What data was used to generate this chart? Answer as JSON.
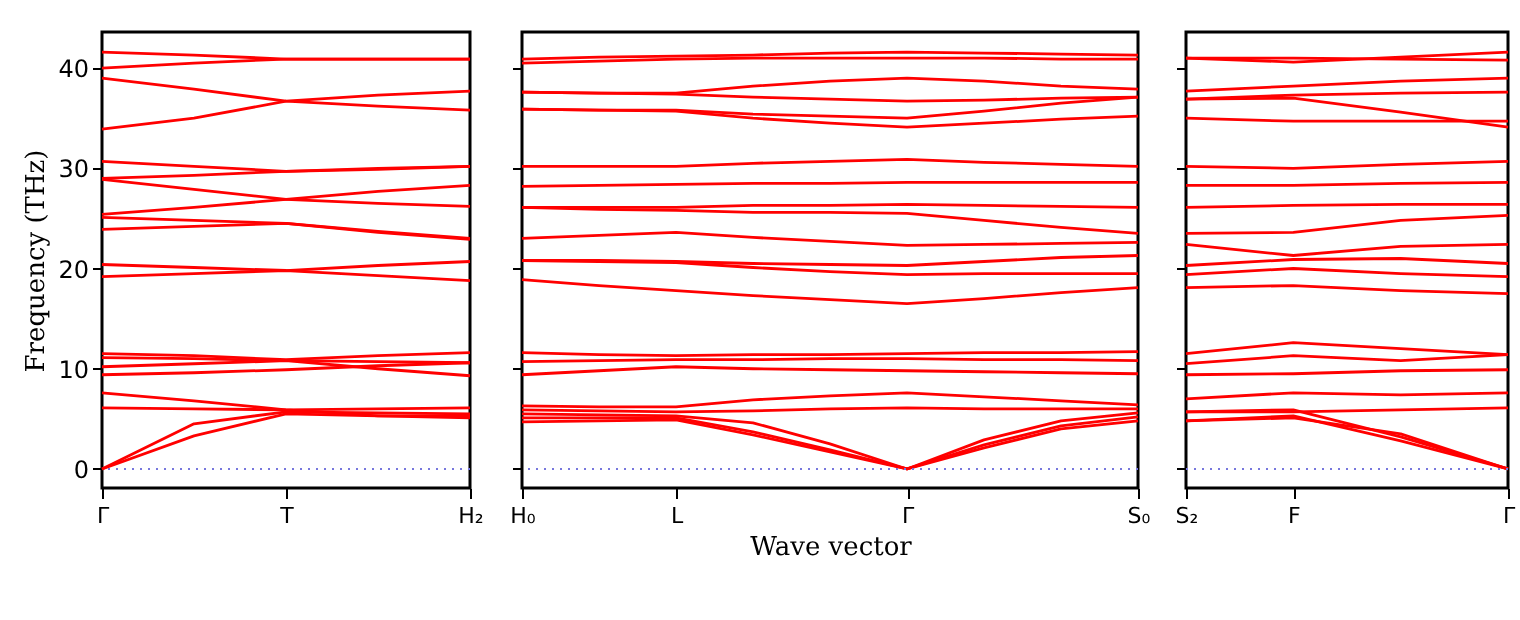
{
  "chart_data": [
    {
      "type": "line",
      "ylabel": "Frequency (THz)",
      "categories": [
        "Γ",
        null,
        "T",
        null,
        "H₂"
      ],
      "ylim": [
        -1.9,
        43.6
      ],
      "yticks": [
        0,
        10,
        20,
        30,
        40
      ],
      "line_style": "solid",
      "ref_lines": [
        {
          "axis": "y",
          "value": 0,
          "color": "#7777dd",
          "line_style": "dotted"
        }
      ],
      "series": [
        {
          "color": "#ff0000",
          "values": [
            41.6,
            41.3,
            40.9,
            40.9,
            40.9
          ]
        },
        {
          "color": "#ff0000",
          "values": [
            40.0,
            40.5,
            40.9,
            40.9,
            40.9
          ]
        },
        {
          "color": "#ff0000",
          "values": [
            39.0,
            37.9,
            36.7,
            36.2,
            35.8
          ]
        },
        {
          "color": "#ff0000",
          "values": [
            33.9,
            35.0,
            36.7,
            37.3,
            37.7
          ]
        },
        {
          "color": "#ff0000",
          "values": [
            30.7,
            30.2,
            29.7,
            29.9,
            30.2
          ]
        },
        {
          "color": "#ff0000",
          "values": [
            29.0,
            29.3,
            29.7,
            30.0,
            30.2
          ]
        },
        {
          "color": "#ff0000",
          "values": [
            28.9,
            27.9,
            26.9,
            26.5,
            26.2
          ]
        },
        {
          "color": "#ff0000",
          "values": [
            25.4,
            26.1,
            26.9,
            27.7,
            28.3
          ]
        },
        {
          "color": "#ff0000",
          "values": [
            25.1,
            24.8,
            24.5,
            23.6,
            22.9
          ]
        },
        {
          "color": "#ff0000",
          "values": [
            23.9,
            24.2,
            24.5,
            23.7,
            23.0
          ]
        },
        {
          "color": "#ff0000",
          "values": [
            20.4,
            20.1,
            19.8,
            20.3,
            20.7
          ]
        },
        {
          "color": "#ff0000",
          "values": [
            19.2,
            19.5,
            19.8,
            19.3,
            18.8
          ]
        },
        {
          "color": "#ff0000",
          "values": [
            11.5,
            11.3,
            10.9,
            11.3,
            11.6
          ]
        },
        {
          "color": "#ff0000",
          "values": [
            11.1,
            11.0,
            10.8,
            10.7,
            10.6
          ]
        },
        {
          "color": "#ff0000",
          "values": [
            10.2,
            10.5,
            10.8,
            10.0,
            9.3
          ]
        },
        {
          "color": "#ff0000",
          "values": [
            9.4,
            9.6,
            9.9,
            10.3,
            10.6
          ]
        },
        {
          "color": "#ff0000",
          "values": [
            7.6,
            6.8,
            5.9,
            5.3,
            5.3
          ]
        },
        {
          "color": "#ff0000",
          "values": [
            6.1,
            6.0,
            5.9,
            6.0,
            6.1
          ]
        },
        {
          "color": "#ff0000",
          "values": [
            0,
            4.5,
            5.7,
            5.6,
            5.5
          ]
        },
        {
          "color": "#ff0000",
          "values": [
            0,
            3.3,
            5.5,
            5.3,
            5.1
          ]
        }
      ]
    },
    {
      "type": "line",
      "xlabel": "Wave vector",
      "categories": [
        "H₀",
        null,
        "L",
        null,
        null,
        "Γ",
        null,
        null,
        "S₀"
      ],
      "ylim": [
        -1.9,
        43.6
      ],
      "yticks": [
        0,
        10,
        20,
        30,
        40
      ],
      "tick_labels": "x",
      "line_style": "solid",
      "ref_lines": [
        {
          "axis": "y",
          "value": 0,
          "color": "#7777dd",
          "line_style": "dotted"
        }
      ],
      "series": [
        {
          "color": "#ff0000",
          "values": [
            40.9,
            41.1,
            41.2,
            41.3,
            41.5,
            41.6,
            41.5,
            41.4,
            41.3
          ]
        },
        {
          "color": "#ff0000",
          "values": [
            40.5,
            40.7,
            40.9,
            41.0,
            41.0,
            41.0,
            41.0,
            40.9,
            40.9
          ]
        },
        {
          "color": "#ff0000",
          "values": [
            37.6,
            37.5,
            37.5,
            38.2,
            38.7,
            39.0,
            38.7,
            38.2,
            37.9
          ]
        },
        {
          "color": "#ff0000",
          "values": [
            37.6,
            37.5,
            37.4,
            37.1,
            36.9,
            36.7,
            36.8,
            37.0,
            37.1
          ]
        },
        {
          "color": "#ff0000",
          "values": [
            35.9,
            35.8,
            35.8,
            35.4,
            35.2,
            35.0,
            35.7,
            36.5,
            37.1
          ]
        },
        {
          "color": "#ff0000",
          "values": [
            35.9,
            35.8,
            35.7,
            35.0,
            34.5,
            34.1,
            34.5,
            34.9,
            35.2
          ]
        },
        {
          "color": "#ff0000",
          "values": [
            30.2,
            30.2,
            30.2,
            30.5,
            30.7,
            30.9,
            30.6,
            30.4,
            30.2
          ]
        },
        {
          "color": "#ff0000",
          "values": [
            28.2,
            28.3,
            28.4,
            28.5,
            28.5,
            28.6,
            28.6,
            28.6,
            28.6
          ]
        },
        {
          "color": "#ff0000",
          "values": [
            26.1,
            26.1,
            26.1,
            26.3,
            26.3,
            26.4,
            26.3,
            26.2,
            26.1
          ]
        },
        {
          "color": "#ff0000",
          "values": [
            26.1,
            25.9,
            25.8,
            25.6,
            25.6,
            25.5,
            24.8,
            24.1,
            23.5
          ]
        },
        {
          "color": "#ff0000",
          "values": [
            23.0,
            23.3,
            23.6,
            23.1,
            22.7,
            22.3,
            22.4,
            22.5,
            22.6
          ]
        },
        {
          "color": "#ff0000",
          "values": [
            20.8,
            20.8,
            20.7,
            20.5,
            20.4,
            20.3,
            20.7,
            21.1,
            21.3
          ]
        },
        {
          "color": "#ff0000",
          "values": [
            20.8,
            20.7,
            20.6,
            20.1,
            19.7,
            19.4,
            19.5,
            19.5,
            19.5
          ]
        },
        {
          "color": "#ff0000",
          "values": [
            18.9,
            18.3,
            17.8,
            17.3,
            16.9,
            16.5,
            17.0,
            17.6,
            18.1
          ]
        },
        {
          "color": "#ff0000",
          "values": [
            11.6,
            11.4,
            11.3,
            11.4,
            11.4,
            11.5,
            11.6,
            11.6,
            11.7
          ]
        },
        {
          "color": "#ff0000",
          "values": [
            10.7,
            10.8,
            10.9,
            10.9,
            11.0,
            11.0,
            10.9,
            10.9,
            10.8
          ]
        },
        {
          "color": "#ff0000",
          "values": [
            9.4,
            9.8,
            10.2,
            10.0,
            9.9,
            9.8,
            9.7,
            9.6,
            9.5
          ]
        },
        {
          "color": "#ff0000",
          "values": [
            6.3,
            6.2,
            6.2,
            6.9,
            7.3,
            7.6,
            7.2,
            6.8,
            6.4
          ]
        },
        {
          "color": "#ff0000",
          "values": [
            5.9,
            5.8,
            5.7,
            5.8,
            6.0,
            6.1,
            6.0,
            6.0,
            6.0
          ]
        },
        {
          "color": "#ff0000",
          "values": [
            5.5,
            5.4,
            5.3,
            4.6,
            2.5,
            0,
            2.9,
            4.8,
            5.6
          ]
        },
        {
          "color": "#ff0000",
          "values": [
            5.1,
            5.1,
            5.1,
            3.7,
            1.9,
            0,
            2.4,
            4.3,
            5.2
          ]
        },
        {
          "color": "#ff0000",
          "values": [
            4.7,
            4.8,
            4.9,
            3.4,
            1.7,
            0,
            2.1,
            4.0,
            4.8
          ]
        }
      ]
    },
    {
      "type": "line",
      "categories": [
        "S₂",
        "F",
        null,
        "Γ"
      ],
      "ylim": [
        -1.9,
        43.6
      ],
      "yticks": [
        0,
        10,
        20,
        30,
        40
      ],
      "tick_labels": "x",
      "line_style": "solid",
      "ref_lines": [
        {
          "axis": "y",
          "value": 0,
          "color": "#7777dd",
          "line_style": "dotted"
        }
      ],
      "series": [
        {
          "color": "#ff0000",
          "values": [
            41.0,
            40.6,
            41.1,
            41.6
          ]
        },
        {
          "color": "#ff0000",
          "values": [
            41.0,
            41.0,
            40.9,
            40.8
          ]
        },
        {
          "color": "#ff0000",
          "values": [
            37.7,
            38.2,
            38.7,
            39.0
          ]
        },
        {
          "color": "#ff0000",
          "values": [
            36.9,
            37.3,
            37.5,
            37.6
          ]
        },
        {
          "color": "#ff0000",
          "values": [
            36.9,
            37.0,
            35.6,
            34.1
          ]
        },
        {
          "color": "#ff0000",
          "values": [
            35.0,
            34.7,
            34.7,
            34.7
          ]
        },
        {
          "color": "#ff0000",
          "values": [
            30.2,
            30.0,
            30.4,
            30.7
          ]
        },
        {
          "color": "#ff0000",
          "values": [
            28.3,
            28.3,
            28.5,
            28.6
          ]
        },
        {
          "color": "#ff0000",
          "values": [
            26.1,
            26.3,
            26.4,
            26.4
          ]
        },
        {
          "color": "#ff0000",
          "values": [
            23.5,
            23.6,
            24.8,
            25.3
          ]
        },
        {
          "color": "#ff0000",
          "values": [
            22.4,
            21.3,
            22.2,
            22.4
          ]
        },
        {
          "color": "#ff0000",
          "values": [
            20.3,
            20.9,
            21.0,
            20.5
          ]
        },
        {
          "color": "#ff0000",
          "values": [
            19.4,
            20.0,
            19.5,
            19.2
          ]
        },
        {
          "color": "#ff0000",
          "values": [
            18.1,
            18.3,
            17.8,
            17.5
          ]
        },
        {
          "color": "#ff0000",
          "values": [
            11.5,
            12.6,
            12.0,
            11.4
          ]
        },
        {
          "color": "#ff0000",
          "values": [
            10.5,
            11.3,
            10.8,
            11.4
          ]
        },
        {
          "color": "#ff0000",
          "values": [
            9.4,
            9.5,
            9.8,
            9.9
          ]
        },
        {
          "color": "#ff0000",
          "values": [
            7.0,
            7.6,
            7.4,
            7.6
          ]
        },
        {
          "color": "#ff0000",
          "values": [
            5.7,
            5.7,
            5.9,
            6.1
          ]
        },
        {
          "color": "#ff0000",
          "values": [
            5.7,
            5.9,
            3.2,
            0
          ]
        },
        {
          "color": "#ff0000",
          "values": [
            4.8,
            5.3,
            2.8,
            0
          ]
        },
        {
          "color": "#ff0000",
          "values": [
            4.8,
            5.1,
            3.5,
            0
          ]
        }
      ]
    }
  ]
}
